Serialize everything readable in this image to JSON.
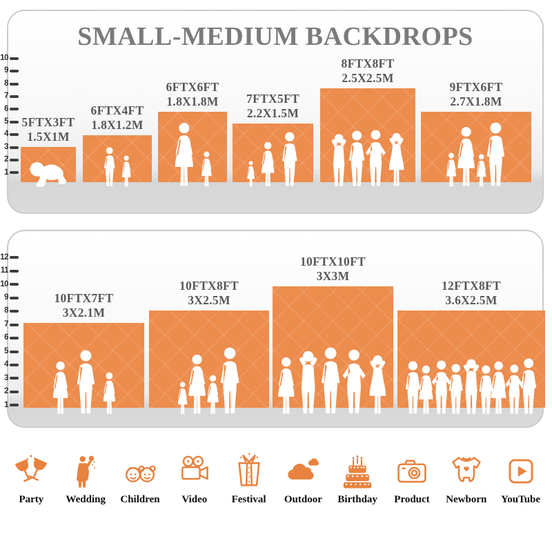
{
  "chart_data": [
    {
      "type": "bar",
      "title": "SMALL-MEDIUM BACKDROPS",
      "unit": "feet",
      "ylim": [
        0,
        10
      ],
      "axis_ticks": [
        1,
        2,
        3,
        4,
        5,
        6,
        7,
        8,
        9,
        10
      ],
      "legend_position": "none",
      "grid": false,
      "bars": [
        {
          "size_ft": "5FTX3FT",
          "size_m": "1.5X1M",
          "width_ft": 5,
          "height_ft": 3,
          "figures": [
            [
              "baby",
              40
            ]
          ]
        },
        {
          "size_ft": "6FTX4FT",
          "size_m": "1.8X1.2M",
          "width_ft": 6,
          "height_ft": 4,
          "figures": [
            [
              "boy",
              58
            ],
            [
              "girl",
              46
            ]
          ]
        },
        {
          "size_ft": "6FTX6FT",
          "size_m": "1.8X1.8M",
          "width_ft": 6,
          "height_ft": 6,
          "figures": [
            [
              "woman",
              94
            ],
            [
              "girl",
              52
            ]
          ]
        },
        {
          "size_ft": "7FTX5FT",
          "size_m": "2.2X1.5M",
          "width_ft": 7,
          "height_ft": 5,
          "figures": [
            [
              "girl",
              38
            ],
            [
              "woman",
              66
            ],
            [
              "man",
              80
            ]
          ]
        },
        {
          "size_ft": "8FTX8FT",
          "size_m": "2.5X2.5M",
          "width_ft": 8,
          "height_ft": 8,
          "figures": [
            [
              "man-up",
              78
            ],
            [
              "man",
              82
            ],
            [
              "man-hips",
              84
            ],
            [
              "woman-up",
              80
            ]
          ]
        },
        {
          "size_ft": "9FTX6FT",
          "size_m": "2.7X1.8M",
          "width_ft": 9,
          "height_ft": 6,
          "figures": [
            [
              "girl",
              50
            ],
            [
              "woman",
              88
            ],
            [
              "girl",
              48
            ],
            [
              "man",
              94
            ]
          ]
        }
      ]
    },
    {
      "type": "bar",
      "title": "",
      "unit": "feet",
      "ylim": [
        0,
        12
      ],
      "axis_ticks": [
        1,
        2,
        3,
        4,
        5,
        6,
        7,
        8,
        9,
        10,
        11,
        12
      ],
      "legend_position": "none",
      "grid": false,
      "bars": [
        {
          "size_ft": "10FTX7FT",
          "size_m": "3X2.1M",
          "width_ft": 10,
          "height_ft": 7,
          "figures": [
            [
              "woman",
              78
            ],
            [
              "man",
              94
            ],
            [
              "girl",
              62
            ]
          ]
        },
        {
          "size_ft": "10FTX8FT",
          "size_m": "3X2.5M",
          "width_ft": 10,
          "height_ft": 8,
          "figures": [
            [
              "girl",
              48
            ],
            [
              "woman",
              88
            ],
            [
              "girl",
              58
            ],
            [
              "man",
              98
            ]
          ]
        },
        {
          "size_ft": "10FTX10FT",
          "size_m": "3X3M",
          "width_ft": 10,
          "height_ft": 10,
          "figures": [
            [
              "woman",
              84
            ],
            [
              "man-up",
              94
            ],
            [
              "man",
              98
            ],
            [
              "man-hips",
              96
            ],
            [
              "woman-up",
              88
            ]
          ]
        },
        {
          "size_ft": "12FTX8FT",
          "size_m": "3.6X2.5M",
          "width_ft": 12,
          "height_ft": 8,
          "figures": [
            [
              "man",
              78
            ],
            [
              "woman",
              72
            ],
            [
              "man-hips",
              80
            ],
            [
              "man",
              74
            ],
            [
              "man-up",
              82
            ],
            [
              "man",
              72
            ],
            [
              "woman",
              78
            ],
            [
              "man-hips",
              74
            ],
            [
              "man",
              82
            ]
          ]
        }
      ]
    }
  ],
  "categories": [
    {
      "label": "Party",
      "icon": "party-icon"
    },
    {
      "label": "Wedding",
      "icon": "wedding-icon"
    },
    {
      "label": "Children",
      "icon": "children-icon"
    },
    {
      "label": "Video",
      "icon": "video-icon"
    },
    {
      "label": "Festival",
      "icon": "festival-icon"
    },
    {
      "label": "Outdoor",
      "icon": "outdoor-icon"
    },
    {
      "label": "Birthday",
      "icon": "birthday-icon"
    },
    {
      "label": "Product",
      "icon": "product-icon"
    },
    {
      "label": "Newborn",
      "icon": "newborn-icon"
    },
    {
      "label": "YouTube",
      "icon": "youtube-icon"
    }
  ],
  "colors": {
    "backdrop_orange": "#EC8C4D",
    "icon_orange": "#E8823E",
    "title_gray": "#7B7B7B",
    "label_gray": "#56575A",
    "floor_gray": "#D8D8D8"
  }
}
